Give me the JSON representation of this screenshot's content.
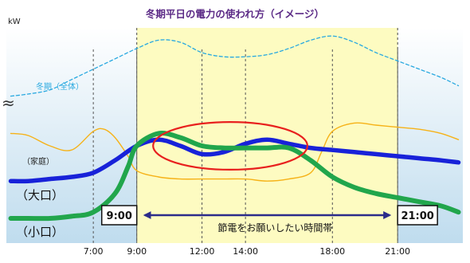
{
  "chart_data": {
    "type": "line",
    "title": "冬期平日の電力の使われ方（イメージ）",
    "ylabel": "kW",
    "x_ticks": [
      "7:00",
      "9:00",
      "12:00",
      "14:00",
      "18:00",
      "21:00"
    ],
    "x_tick_hours": [
      7,
      9,
      12,
      14,
      18,
      21
    ],
    "xlim": [
      3,
      24
    ],
    "ylim": [
      0,
      100
    ],
    "axis_break_symbol": "≈",
    "highlight": {
      "from": "9:00",
      "to": "21:00",
      "from_hour": 9,
      "to_hour": 21,
      "label": "節電をお願いしたい時間帯",
      "color": "#fdfbc1"
    },
    "series": [
      {
        "name": "冬期（全体）",
        "color": "#29a9e0",
        "style": "dashed",
        "points": [
          [
            3.2,
            69
          ],
          [
            4,
            70
          ],
          [
            5,
            72
          ],
          [
            6,
            77
          ],
          [
            7,
            82
          ],
          [
            8,
            87
          ],
          [
            9,
            92
          ],
          [
            10,
            96
          ],
          [
            11,
            95
          ],
          [
            12,
            90
          ],
          [
            13,
            88
          ],
          [
            14,
            88
          ],
          [
            15,
            89
          ],
          [
            16,
            92
          ],
          [
            17,
            96
          ],
          [
            18,
            98
          ],
          [
            19,
            95
          ],
          [
            20,
            90
          ],
          [
            21,
            86
          ],
          [
            22,
            82
          ],
          [
            23,
            78
          ],
          [
            23.8,
            74
          ]
        ]
      },
      {
        "name": "（家庭）",
        "color": "#f6b217",
        "style": "solid",
        "points": [
          [
            3.2,
            51
          ],
          [
            4,
            50
          ],
          [
            5,
            45
          ],
          [
            6,
            43
          ],
          [
            7,
            52
          ],
          [
            7.5,
            53
          ],
          [
            8,
            49
          ],
          [
            8.6,
            40
          ],
          [
            9,
            33
          ],
          [
            10,
            30
          ],
          [
            11,
            29
          ],
          [
            12,
            29
          ],
          [
            13,
            29
          ],
          [
            14,
            29
          ],
          [
            15,
            28
          ],
          [
            16,
            29
          ],
          [
            17,
            32
          ],
          [
            17.5,
            42
          ],
          [
            18,
            52
          ],
          [
            19,
            56
          ],
          [
            20,
            55
          ],
          [
            21,
            54
          ],
          [
            22,
            53
          ],
          [
            23,
            51
          ],
          [
            23.8,
            48
          ]
        ]
      },
      {
        "name": "（大口）",
        "color": "#1822d9",
        "style": "solid",
        "points": [
          [
            3.2,
            28
          ],
          [
            4,
            28
          ],
          [
            5,
            29
          ],
          [
            6,
            30
          ],
          [
            7,
            32
          ],
          [
            8,
            38
          ],
          [
            9,
            45
          ],
          [
            10,
            48
          ],
          [
            11,
            45
          ],
          [
            12,
            41
          ],
          [
            13,
            42
          ],
          [
            14,
            46
          ],
          [
            15,
            48
          ],
          [
            16,
            46
          ],
          [
            17,
            44
          ],
          [
            18,
            43
          ],
          [
            19,
            42
          ],
          [
            20,
            41
          ],
          [
            21,
            40
          ],
          [
            22,
            39
          ],
          [
            23,
            38
          ],
          [
            23.8,
            37
          ]
        ]
      },
      {
        "name": "（小口）",
        "color": "#21a64c",
        "style": "solid",
        "points": [
          [
            3.2,
            10
          ],
          [
            4,
            10
          ],
          [
            5,
            10
          ],
          [
            6,
            11
          ],
          [
            7,
            13
          ],
          [
            8,
            22
          ],
          [
            8.6,
            35
          ],
          [
            9,
            45
          ],
          [
            10,
            51
          ],
          [
            11,
            49
          ],
          [
            12,
            45
          ],
          [
            13,
            44
          ],
          [
            14,
            44
          ],
          [
            15,
            44
          ],
          [
            16,
            44
          ],
          [
            17,
            38
          ],
          [
            18,
            30
          ],
          [
            19,
            25
          ],
          [
            20,
            22
          ],
          [
            21,
            20
          ],
          [
            22,
            18
          ],
          [
            23,
            16
          ],
          [
            23.8,
            13
          ]
        ]
      }
    ],
    "series_labels": [
      {
        "text": "冬期（全体）",
        "color": "#29a9e0"
      },
      {
        "text": "（家庭）",
        "color": "#222222"
      },
      {
        "text": "（大口）",
        "color": "#111111"
      },
      {
        "text": "（小口）",
        "color": "#111111"
      }
    ],
    "annotation": {
      "shape": "ellipse",
      "color": "#e8201e",
      "center": [
        13.3,
        45
      ],
      "rx_hours": 3.55,
      "ry_units": 11.5
    },
    "background_gradient": [
      "#ffffff",
      "#bfdcee"
    ],
    "boxes": [
      {
        "text": "9:00",
        "hour": 9
      },
      {
        "text": "21:00",
        "hour": 21
      }
    ]
  }
}
